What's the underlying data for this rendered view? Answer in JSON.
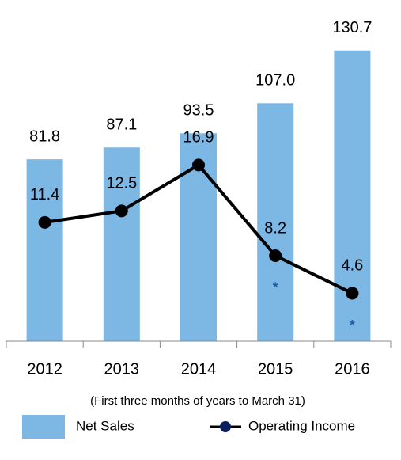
{
  "chart_data": {
    "type": "bar_line",
    "categories": [
      "2012",
      "2013",
      "2014",
      "2015",
      "2016"
    ],
    "x_label": "(First three months of years to March 31)",
    "series": [
      {
        "name": "Net Sales",
        "type": "bar",
        "color": "#7db7e3",
        "values": [
          81.8,
          87.1,
          93.5,
          107.0,
          130.7
        ],
        "value_labels": [
          "81.8",
          "87.1",
          "93.5",
          "107.0",
          "130.7"
        ]
      },
      {
        "name": "Operating Income",
        "type": "line",
        "axis": "y2",
        "color": "#000000",
        "values": [
          11.4,
          12.5,
          16.9,
          8.2,
          4.6
        ]
      }
    ],
    "annotations": [
      "*",
      "*"
    ],
    "annotation_color": "#1f5fa8",
    "ylim": [
      0,
      150
    ],
    "y2lim": [
      0,
      32
    ],
    "legend": "bottom"
  }
}
